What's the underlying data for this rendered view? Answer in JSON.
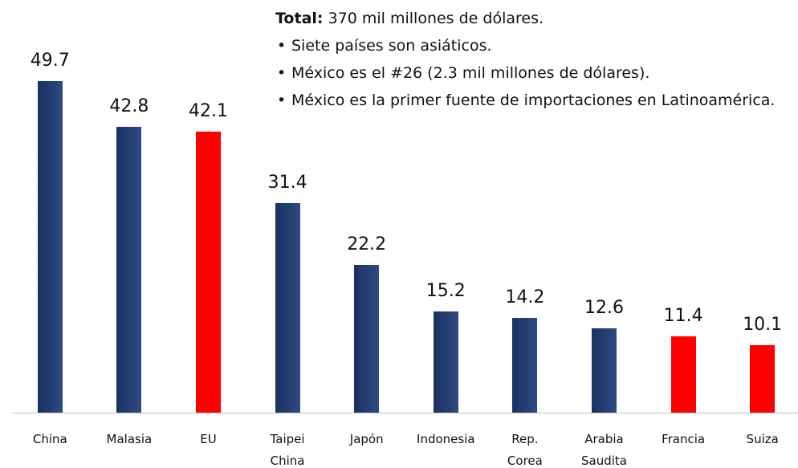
{
  "chart_data": {
    "type": "bar",
    "categories": [
      "China",
      "Malasia",
      "EU",
      "Taipei\nChina",
      "Japón",
      "Indonesia",
      "Rep.\nCorea",
      "Arabia\nSaudita",
      "Francia",
      "Suiza"
    ],
    "values": [
      49.7,
      42.8,
      42.1,
      31.4,
      22.2,
      15.2,
      14.2,
      12.6,
      11.4,
      10.1
    ],
    "colors": [
      "#213f7c",
      "#213f7c",
      "#ff0000",
      "#213f7c",
      "#213f7c",
      "#213f7c",
      "#213f7c",
      "#213f7c",
      "#ff0000",
      "#ff0000"
    ],
    "annotation": {
      "total_label": "Total:",
      "total_text": "370 mil millones de dólares.",
      "bullets": [
        "Siete países son asiáticos.",
        "México es el #26 (2.3 mil millones de dólares).",
        "México es la primer fuente de importaciones en Latinoamérica."
      ]
    }
  }
}
